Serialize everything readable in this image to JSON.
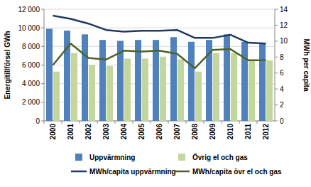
{
  "chart_data": {
    "type": "bar",
    "y_label": "Energitillförsel GWh",
    "y2_label": "MWh per capita",
    "categories": [
      "2000",
      "2001",
      "2002",
      "2003",
      "2004",
      "2005",
      "2006",
      "2007",
      "2008",
      "2009",
      "2010",
      "2011",
      "2012"
    ],
    "series": [
      {
        "name": "Uppvärmning",
        "type": "bar",
        "color": "#4f81bd",
        "values": [
          9900,
          9700,
          9300,
          8700,
          8600,
          8700,
          8700,
          9000,
          8500,
          8700,
          9300,
          8500,
          8400
        ]
      },
      {
        "name": "Övrig el och gas",
        "type": "bar",
        "color": "#c3d69b",
        "values": [
          5300,
          7300,
          6000,
          5900,
          6700,
          6700,
          6900,
          6600,
          5300,
          7300,
          7300,
          6600,
          6500
        ]
      },
      {
        "name": "MWh/capita uppvärmning",
        "type": "line",
        "axis": "y2",
        "color": "#1f3a60",
        "values": [
          13.2,
          12.8,
          12.2,
          11.4,
          11.2,
          11.3,
          11.3,
          11.4,
          10.4,
          10.4,
          10.8,
          9.8,
          9.7
        ]
      },
      {
        "name": "MWh/capita övr el och gas",
        "type": "line",
        "axis": "y2",
        "color": "#4f6228",
        "values": [
          7.0,
          9.7,
          7.9,
          7.7,
          8.8,
          8.7,
          8.8,
          8.4,
          6.6,
          8.9,
          9.0,
          7.6,
          7.6
        ]
      }
    ],
    "ylim": [
      0,
      12000
    ],
    "yticks": [
      0,
      {
        "value": 2000,
        "label": "2 000"
      },
      {
        "value": 4000,
        "label": "4 000"
      },
      {
        "value": 6000,
        "label": "6 000"
      },
      {
        "value": 8000,
        "label": "8 000"
      },
      {
        "value": 10000,
        "label": "10 000"
      },
      {
        "value": 12000,
        "label": "12 000"
      }
    ],
    "y2lim": [
      0,
      14
    ],
    "y2ticks": [
      0,
      2,
      4,
      6,
      8,
      10,
      12,
      14
    ],
    "grid": true,
    "legend": "bottom"
  }
}
